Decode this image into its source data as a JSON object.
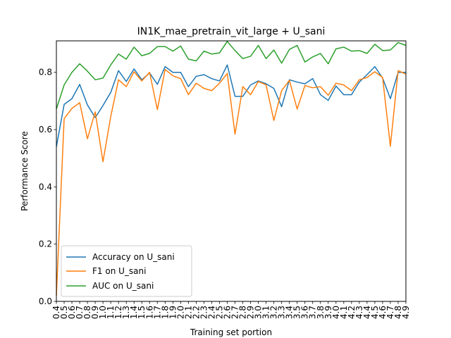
{
  "chart_data": {
    "type": "line",
    "title": "IN1K_mae_pretrain_vit_large + U_sani",
    "xlabel": "Training set portion",
    "ylabel": "Performance Score",
    "ylim": [
      0.0,
      0.91
    ],
    "yticks": [
      "0.0",
      "0.2",
      "0.4",
      "0.6",
      "0.8"
    ],
    "legend_position": "lower-left",
    "grid": false,
    "x": [
      "0.4",
      "0.5",
      "0.6",
      "0.7",
      "0.8",
      "0.9",
      "1.0",
      "1.1",
      "1.2",
      "1.3",
      "1.4",
      "1.5",
      "1.6",
      "1.7",
      "1.8",
      "1.9",
      "2.0",
      "2.1",
      "2.2",
      "2.3",
      "2.4",
      "2.5",
      "2.6",
      "2.7",
      "2.8",
      "2.9",
      "3.0",
      "3.1",
      "3.2",
      "3.3",
      "3.4",
      "3.5",
      "3.6",
      "3.7",
      "3.8",
      "3.9",
      "4.0",
      "4.1",
      "4.2",
      "4.3",
      "4.4",
      "4.5",
      "4.6",
      "4.7",
      "4.8",
      "4.9"
    ],
    "series": [
      {
        "name": "Accuracy on U_sani",
        "color": "#1f77b4",
        "values": [
          0.54,
          0.688,
          0.708,
          0.758,
          0.686,
          0.642,
          0.684,
          0.73,
          0.806,
          0.768,
          0.812,
          0.774,
          0.798,
          0.758,
          0.82,
          0.8,
          0.8,
          0.75,
          0.786,
          0.792,
          0.778,
          0.77,
          0.826,
          0.716,
          0.716,
          0.756,
          0.77,
          0.76,
          0.744,
          0.68,
          0.774,
          0.766,
          0.76,
          0.778,
          0.722,
          0.702,
          0.752,
          0.722,
          0.722,
          0.766,
          0.792,
          0.82,
          0.78,
          0.708,
          0.8,
          0.8
        ]
      },
      {
        "name": "F1 on U_sani",
        "color": "#ff7f0e",
        "values": [
          0.02,
          0.638,
          0.674,
          0.694,
          0.568,
          0.662,
          0.488,
          0.646,
          0.774,
          0.75,
          0.802,
          0.77,
          0.8,
          0.67,
          0.81,
          0.788,
          0.778,
          0.722,
          0.762,
          0.744,
          0.736,
          0.762,
          0.796,
          0.584,
          0.75,
          0.722,
          0.768,
          0.756,
          0.632,
          0.736,
          0.772,
          0.672,
          0.754,
          0.746,
          0.75,
          0.72,
          0.762,
          0.756,
          0.736,
          0.774,
          0.782,
          0.802,
          0.782,
          0.542,
          0.806,
          0.794
        ]
      },
      {
        "name": "AUC on U_sani",
        "color": "#2ca02c",
        "values": [
          0.672,
          0.756,
          0.8,
          0.83,
          0.804,
          0.774,
          0.78,
          0.826,
          0.864,
          0.846,
          0.888,
          0.858,
          0.866,
          0.89,
          0.89,
          0.874,
          0.892,
          0.846,
          0.84,
          0.874,
          0.864,
          0.868,
          0.908,
          0.876,
          0.848,
          0.856,
          0.894,
          0.848,
          0.878,
          0.832,
          0.88,
          0.894,
          0.836,
          0.854,
          0.866,
          0.83,
          0.882,
          0.888,
          0.874,
          0.876,
          0.866,
          0.898,
          0.876,
          0.878,
          0.904,
          0.894
        ]
      }
    ]
  }
}
